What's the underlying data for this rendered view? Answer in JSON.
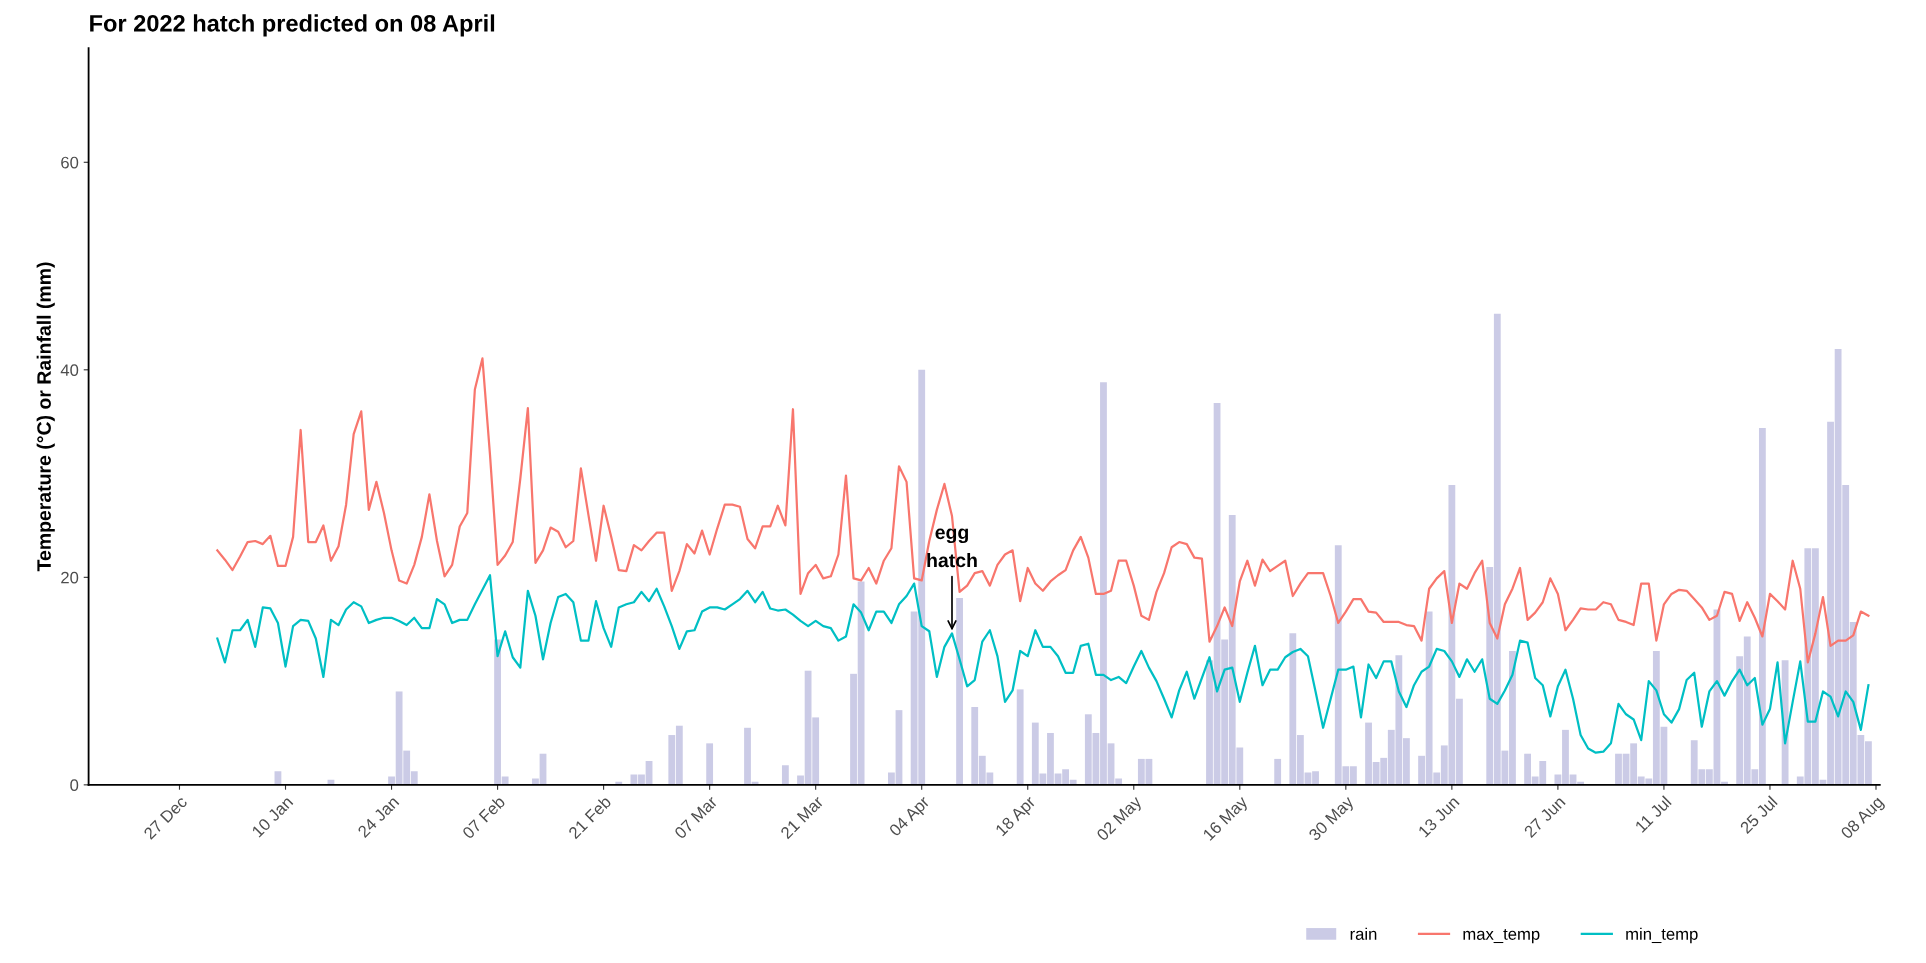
{
  "chart_data": {
    "type": "line",
    "title": "For 2022 hatch predicted on 08 April",
    "ylabel": "Temperature (°C) or Rainfall (mm)",
    "xlim": [
      "2021-12-15",
      "2022-08-08T12:00"
    ],
    "ylim": [
      0,
      71
    ],
    "yticks": [
      0,
      20,
      40,
      60
    ],
    "xticks": [
      {
        "value": "2021-12-27",
        "label": "27 Dec"
      },
      {
        "value": "2022-01-10",
        "label": "10 Jan"
      },
      {
        "value": "2022-01-24",
        "label": "24 Jan"
      },
      {
        "value": "2022-02-07",
        "label": "07 Feb"
      },
      {
        "value": "2022-02-21",
        "label": "21 Feb"
      },
      {
        "value": "2022-03-07",
        "label": "07 Mar"
      },
      {
        "value": "2022-03-21",
        "label": "21 Mar"
      },
      {
        "value": "2022-04-04",
        "label": "04 Apr"
      },
      {
        "value": "2022-04-18",
        "label": "18 Apr"
      },
      {
        "value": "2022-05-02",
        "label": "02 May"
      },
      {
        "value": "2022-05-16",
        "label": "16 May"
      },
      {
        "value": "2022-05-30",
        "label": "30 May"
      },
      {
        "value": "2022-06-13",
        "label": "13 Jun"
      },
      {
        "value": "2022-06-27",
        "label": "27 Jun"
      },
      {
        "value": "2022-07-11",
        "label": "11 Jul"
      },
      {
        "value": "2022-07-25",
        "label": "25 Jul"
      },
      {
        "value": "2022-08-08",
        "label": "08 Aug"
      }
    ],
    "grid": false,
    "legend": "bottom",
    "annotations": [
      {
        "text": "egg\nhatch",
        "x": "2022-04-08",
        "y": 14.6
      }
    ],
    "x": [
      "2022-01-01",
      "2022-01-02",
      "2022-01-03",
      "2022-01-04",
      "2022-01-05",
      "2022-01-06",
      "2022-01-07",
      "2022-01-08",
      "2022-01-09",
      "2022-01-10",
      "2022-01-11",
      "2022-01-12",
      "2022-01-13",
      "2022-01-14",
      "2022-01-15",
      "2022-01-16",
      "2022-01-17",
      "2022-01-18",
      "2022-01-19",
      "2022-01-20",
      "2022-01-21",
      "2022-01-22",
      "2022-01-23",
      "2022-01-24",
      "2022-01-25",
      "2022-01-26",
      "2022-01-27",
      "2022-01-28",
      "2022-01-29",
      "2022-01-30",
      "2022-01-31",
      "2022-02-01",
      "2022-02-02",
      "2022-02-03",
      "2022-02-04",
      "2022-02-05",
      "2022-02-06",
      "2022-02-07",
      "2022-02-08",
      "2022-02-09",
      "2022-02-10",
      "2022-02-11",
      "2022-02-12",
      "2022-02-13",
      "2022-02-14",
      "2022-02-15",
      "2022-02-16",
      "2022-02-17",
      "2022-02-18",
      "2022-02-19",
      "2022-02-20",
      "2022-02-21",
      "2022-02-22",
      "2022-02-23",
      "2022-02-24",
      "2022-02-25",
      "2022-02-26",
      "2022-02-27",
      "2022-02-28",
      "2022-03-01",
      "2022-03-02",
      "2022-03-03",
      "2022-03-04",
      "2022-03-05",
      "2022-03-06",
      "2022-03-07",
      "2022-03-08",
      "2022-03-09",
      "2022-03-10",
      "2022-03-11",
      "2022-03-12",
      "2022-03-13",
      "2022-03-14",
      "2022-03-15",
      "2022-03-16",
      "2022-03-17",
      "2022-03-18",
      "2022-03-19",
      "2022-03-20",
      "2022-03-21",
      "2022-03-22",
      "2022-03-23",
      "2022-03-24",
      "2022-03-25",
      "2022-03-26",
      "2022-03-27",
      "2022-03-28",
      "2022-03-29",
      "2022-03-30",
      "2022-03-31",
      "2022-04-01",
      "2022-04-02",
      "2022-04-03",
      "2022-04-04",
      "2022-04-05",
      "2022-04-06",
      "2022-04-07",
      "2022-04-08",
      "2022-04-09",
      "2022-04-10",
      "2022-04-11",
      "2022-04-12",
      "2022-04-13",
      "2022-04-14",
      "2022-04-15",
      "2022-04-16",
      "2022-04-17",
      "2022-04-18",
      "2022-04-19",
      "2022-04-20",
      "2022-04-21",
      "2022-04-22",
      "2022-04-23",
      "2022-04-24",
      "2022-04-25",
      "2022-04-26",
      "2022-04-27",
      "2022-04-28",
      "2022-04-29",
      "2022-04-30",
      "2022-05-01",
      "2022-05-02",
      "2022-05-03",
      "2022-05-04",
      "2022-05-05",
      "2022-05-06",
      "2022-05-07",
      "2022-05-08",
      "2022-05-09",
      "2022-05-10",
      "2022-05-11",
      "2022-05-12",
      "2022-05-13",
      "2022-05-14",
      "2022-05-15",
      "2022-05-16",
      "2022-05-17",
      "2022-05-18",
      "2022-05-19",
      "2022-05-20",
      "2022-05-21",
      "2022-05-22",
      "2022-05-23",
      "2022-05-24",
      "2022-05-25",
      "2022-05-26",
      "2022-05-27",
      "2022-05-28",
      "2022-05-29",
      "2022-05-30",
      "2022-05-31",
      "2022-06-01",
      "2022-06-02",
      "2022-06-03",
      "2022-06-04",
      "2022-06-05",
      "2022-06-06",
      "2022-06-07",
      "2022-06-08",
      "2022-06-09",
      "2022-06-10",
      "2022-06-11",
      "2022-06-12",
      "2022-06-13",
      "2022-06-14",
      "2022-06-15",
      "2022-06-16",
      "2022-06-17",
      "2022-06-18",
      "2022-06-19",
      "2022-06-20",
      "2022-06-21",
      "2022-06-22",
      "2022-06-23",
      "2022-06-24",
      "2022-06-25",
      "2022-06-26",
      "2022-06-27",
      "2022-06-28",
      "2022-06-29",
      "2022-06-30",
      "2022-07-01",
      "2022-07-02",
      "2022-07-03",
      "2022-07-04",
      "2022-07-05",
      "2022-07-06",
      "2022-07-07",
      "2022-07-08",
      "2022-07-09",
      "2022-07-10",
      "2022-07-11",
      "2022-07-12",
      "2022-07-13",
      "2022-07-14",
      "2022-07-15",
      "2022-07-16",
      "2022-07-17",
      "2022-07-18",
      "2022-07-19",
      "2022-07-20",
      "2022-07-21",
      "2022-07-22",
      "2022-07-23",
      "2022-07-24",
      "2022-07-25",
      "2022-07-26",
      "2022-07-27",
      "2022-07-28",
      "2022-07-29",
      "2022-07-30",
      "2022-07-31",
      "2022-08-01",
      "2022-08-02",
      "2022-08-03",
      "2022-08-04",
      "2022-08-05",
      "2022-08-06",
      "2022-08-07"
    ],
    "series": [
      {
        "name": "rain",
        "type": "bar",
        "color": "#cbcbe6",
        "values": [
          null,
          null,
          null,
          null,
          null,
          null,
          null,
          null,
          1.3,
          null,
          null,
          null,
          null,
          null,
          null,
          0.5,
          null,
          null,
          null,
          null,
          null,
          null,
          null,
          0.8,
          9,
          3.3,
          1.3,
          null,
          null,
          null,
          null,
          null,
          null,
          null,
          null,
          null,
          null,
          14,
          0.8,
          null,
          null,
          null,
          0.6,
          3,
          null,
          null,
          null,
          null,
          null,
          null,
          null,
          null,
          null,
          0.3,
          null,
          1,
          1,
          2.3,
          null,
          null,
          4.8,
          5.7,
          null,
          null,
          null,
          4,
          null,
          null,
          null,
          null,
          5.5,
          0.3,
          null,
          null,
          null,
          1.9,
          null,
          0.9,
          11,
          6.5,
          null,
          null,
          null,
          null,
          10.7,
          19.6,
          null,
          null,
          null,
          1.2,
          7.2,
          null,
          16.7,
          40,
          null,
          null,
          null,
          null,
          18,
          null,
          7.5,
          2.8,
          1.2,
          null,
          null,
          null,
          9.2,
          null,
          6,
          1.1,
          5,
          1.1,
          1.5,
          0.5,
          null,
          6.8,
          5,
          38.8,
          4,
          0.6,
          null,
          null,
          2.5,
          2.5,
          null,
          null,
          null,
          null,
          null,
          null,
          null,
          12,
          36.8,
          14,
          26,
          3.6,
          null,
          null,
          null,
          null,
          2.5,
          null,
          14.6,
          4.8,
          1.2,
          1.3,
          null,
          null,
          23.1,
          1.8,
          1.8,
          null,
          6,
          2.2,
          2.6,
          5.3,
          12.5,
          4.5,
          null,
          2.8,
          16.7,
          1.2,
          3.8,
          28.9,
          8.3,
          null,
          null,
          null,
          21,
          45.4,
          3.3,
          12.9,
          null,
          3,
          0.8,
          2.3,
          null,
          1,
          5.3,
          1,
          0.3,
          null,
          null,
          null,
          null,
          3,
          3,
          4,
          0.8,
          0.6,
          12.9,
          5.6,
          null,
          null,
          null,
          4.3,
          1.5,
          1.5,
          16.9,
          0.3,
          null,
          12.4,
          14.3,
          1.5,
          34.4,
          null,
          null,
          12,
          null,
          0.8,
          22.8,
          22.8,
          0.5,
          35,
          42,
          28.9,
          15.7,
          4.8,
          4.2
        ]
      },
      {
        "name": "max_temp",
        "color": "#f8766d",
        "values": [
          22.6,
          21.7,
          20.7,
          22,
          23.4,
          23.5,
          23.2,
          24,
          21.1,
          21.1,
          23.9,
          34.2,
          23.4,
          23.4,
          25,
          21.6,
          23,
          27,
          33.8,
          36,
          26.5,
          29.2,
          26.2,
          22.6,
          19.7,
          19.4,
          21.2,
          23.9,
          28,
          23.5,
          20.1,
          21.2,
          24.9,
          26.2,
          38.1,
          41.1,
          31.8,
          21.2,
          22.1,
          23.4,
          29.5,
          36.3,
          21.4,
          22.6,
          24.8,
          24.4,
          22.9,
          23.5,
          30.5,
          26,
          21.6,
          26.9,
          23.9,
          20.7,
          20.6,
          23.1,
          22.6,
          23.5,
          24.3,
          24.3,
          18.7,
          20.6,
          23.2,
          22.3,
          24.5,
          22.2,
          24.7,
          27,
          27,
          26.8,
          23.7,
          22.8,
          24.9,
          24.9,
          26.9,
          25,
          36.2,
          18.4,
          20.4,
          21.2,
          19.9,
          20.1,
          22.2,
          29.8,
          19.9,
          19.7,
          20.9,
          19.4,
          21.6,
          22.8,
          30.7,
          29.2,
          19.9,
          19.7,
          23.5,
          26.5,
          29,
          25.9,
          18.6,
          19.2,
          20.4,
          20.6,
          19.2,
          21.2,
          22.2,
          22.6,
          17.7,
          20.9,
          19.4,
          18.7,
          19.6,
          20.2,
          20.7,
          22.6,
          23.9,
          21.9,
          18.4,
          18.4,
          18.7,
          21.6,
          21.6,
          19.2,
          16.3,
          15.9,
          18.6,
          20.4,
          22.9,
          23.4,
          23.2,
          21.9,
          21.8,
          13.8,
          15.3,
          17.1,
          15.3,
          19.6,
          21.6,
          19.2,
          21.7,
          20.6,
          21.1,
          21.6,
          18.2,
          19.4,
          20.4,
          20.4,
          20.4,
          18.2,
          15.6,
          16.7,
          17.9,
          17.9,
          16.7,
          16.6,
          15.7,
          15.7,
          15.7,
          15.4,
          15.3,
          13.9,
          18.9,
          19.9,
          20.6,
          15.6,
          19.4,
          18.9,
          20.4,
          21.6,
          15.6,
          14.1,
          17.4,
          18.9,
          20.9,
          15.9,
          16.6,
          17.6,
          19.9,
          18.4,
          14.9,
          15.9,
          17,
          16.9,
          16.9,
          17.6,
          17.4,
          15.9,
          15.7,
          15.4,
          19.4,
          19.4,
          13.9,
          17.4,
          18.4,
          18.8,
          18.7,
          17.9,
          17.1,
          15.9,
          16.3,
          18.6,
          18.4,
          15.8,
          17.6,
          16.1,
          14.3,
          18.4,
          17.7,
          16.9,
          21.6,
          18.9,
          11.8,
          14.6,
          18.1,
          13.4,
          13.9,
          13.9,
          14.4,
          16.7,
          16.3
        ]
      },
      {
        "name": "min_temp",
        "color": "#00bfc4",
        "values": [
          14.1,
          11.8,
          14.9,
          14.9,
          15.9,
          13.3,
          17.1,
          17,
          15.6,
          11.4,
          15.3,
          15.9,
          15.8,
          14.1,
          10.4,
          15.9,
          15.4,
          16.9,
          17.6,
          17.2,
          15.6,
          15.9,
          16.1,
          16.1,
          15.8,
          15.4,
          16.1,
          15.1,
          15.1,
          17.9,
          17.4,
          15.6,
          15.9,
          15.9,
          17.4,
          18.8,
          20.2,
          12.4,
          14.8,
          12.3,
          11.3,
          18.7,
          16.3,
          12.1,
          15.6,
          18.1,
          18.4,
          17.6,
          13.9,
          13.9,
          17.7,
          15.1,
          13.3,
          17.1,
          17.4,
          17.6,
          18.6,
          17.7,
          18.9,
          17.2,
          15.3,
          13.1,
          14.8,
          14.9,
          16.7,
          17.1,
          17.1,
          16.9,
          17.4,
          17.9,
          18.7,
          17.6,
          18.6,
          17,
          16.8,
          16.9,
          16.4,
          15.8,
          15.3,
          15.8,
          15.3,
          15.1,
          13.9,
          14.3,
          17.4,
          16.6,
          14.9,
          16.7,
          16.7,
          15.6,
          17.4,
          18.2,
          19.4,
          15.3,
          14.8,
          10.4,
          13.3,
          14.6,
          12.1,
          9.5,
          10.1,
          13.8,
          14.9,
          12.4,
          8,
          9.1,
          12.9,
          12.4,
          14.9,
          13.3,
          13.3,
          12.4,
          10.8,
          10.8,
          13.4,
          13.6,
          10.6,
          10.6,
          10.1,
          10.4,
          9.8,
          11.4,
          12.9,
          11.3,
          10,
          8.3,
          6.5,
          9.1,
          10.9,
          8.3,
          10.3,
          12.3,
          9,
          11.1,
          11.3,
          8,
          10.8,
          13.4,
          9.6,
          11.1,
          11.1,
          12.3,
          12.8,
          13.1,
          12.4,
          9,
          5.5,
          8.3,
          11.1,
          11.1,
          11.4,
          6.5,
          11.6,
          10.3,
          11.9,
          11.9,
          9,
          7.5,
          9.6,
          10.9,
          11.4,
          13.1,
          12.9,
          11.9,
          10.4,
          12.1,
          10.9,
          12.1,
          8.3,
          7.8,
          9.1,
          10.6,
          13.9,
          13.7,
          10.3,
          9.6,
          6.6,
          9.5,
          11.1,
          8.3,
          4.8,
          3.5,
          3.1,
          3.2,
          4,
          7.8,
          6.8,
          6.3,
          4.3,
          10,
          9.1,
          6.8,
          6,
          7.3,
          10.1,
          10.8,
          5.6,
          9,
          10,
          8.6,
          10,
          11.1,
          9.6,
          10.3,
          5.8,
          7.3,
          11.8,
          4,
          8,
          11.9,
          6.1,
          6.1,
          9,
          8.5,
          6.6,
          9,
          8,
          5.3,
          9.6
        ]
      }
    ]
  }
}
